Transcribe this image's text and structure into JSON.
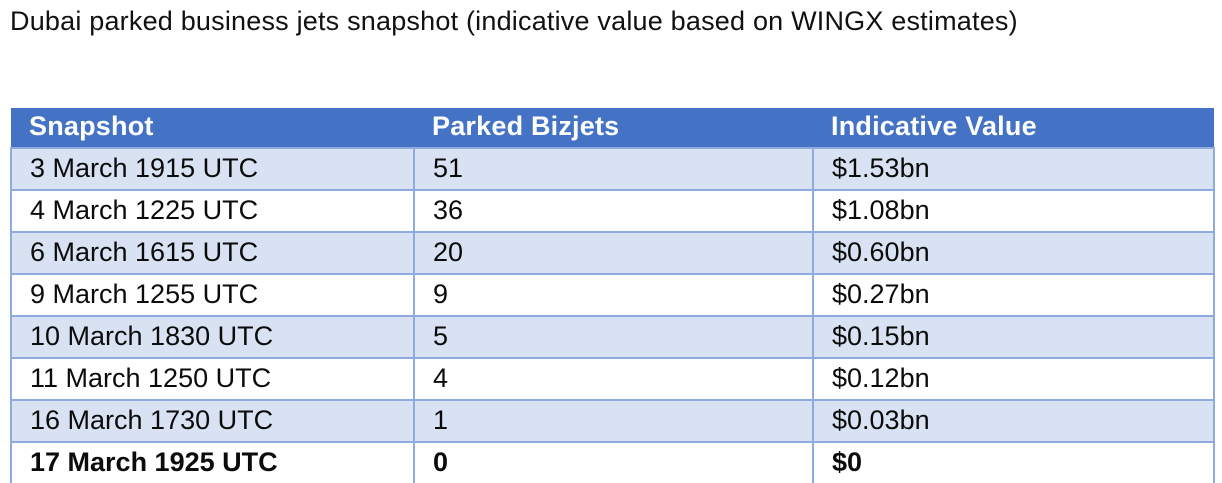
{
  "title": "Dubai parked business jets snapshot (indicative value based on WINGX estimates)",
  "colors": {
    "header_bg": "#4472C4",
    "header_text": "#FFFFFF",
    "band_bg": "#D9E2F3",
    "border": "#8FAADC",
    "body_text": "#0b0b0b"
  },
  "chart_data": {
    "type": "table",
    "title": "Dubai parked business jets snapshot (indicative value based on WINGX estimates)",
    "columns": [
      "Snapshot",
      "Parked Bizjets",
      "Indicative Value"
    ],
    "rows": [
      [
        "3 March 1915 UTC",
        51,
        "$1.53bn"
      ],
      [
        "4 March 1225 UTC",
        36,
        "$1.08bn"
      ],
      [
        "6 March 1615 UTC",
        20,
        "$0.60bn"
      ],
      [
        "9 March 1255 UTC",
        9,
        "$0.27bn"
      ],
      [
        "10 March 1830 UTC",
        5,
        "$0.15bn"
      ],
      [
        "11 March 1250 UTC",
        4,
        "$0.12bn"
      ],
      [
        "16 March 1730 UTC",
        1,
        "$0.03bn"
      ],
      [
        "17 March 1925 UTC",
        0,
        "$0"
      ]
    ],
    "layout": {
      "banded_rows": true,
      "banded_row_indexes": [
        0,
        2,
        4,
        6
      ],
      "last_row_bold": true,
      "header_fill": "#4472C4",
      "band_fill": "#D9E2F3",
      "border_color": "#8FAADC"
    }
  }
}
